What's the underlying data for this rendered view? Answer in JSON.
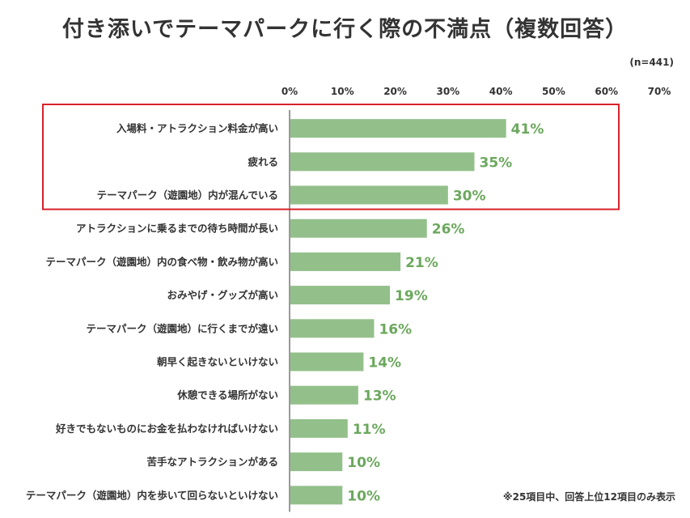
{
  "page": {
    "title": "付き添いでテーマパークに行く際の不満点（複数回答）",
    "sample_size": "(n=441)",
    "footnote": "※25項目中、回答上位12項目のみ表示"
  },
  "colors": {
    "bar": "#93c08a",
    "value_label": "#6ba85d",
    "highlight_box": "#d7222b",
    "axis": "#333333"
  },
  "chart_data": {
    "type": "bar",
    "orientation": "horizontal",
    "title": "付き添いでテーマパークに行く際の不満点（複数回答）",
    "xlim": [
      0,
      70
    ],
    "ticks": [
      0,
      10,
      20,
      30,
      40,
      50,
      60,
      70
    ],
    "tick_labels": [
      "0%",
      "10%",
      "20%",
      "30%",
      "40%",
      "50%",
      "60%",
      "70%"
    ],
    "tick_position": "top",
    "grid": false,
    "categories": [
      "入場料・アトラクション料金が高い",
      "疲れる",
      "テーマパーク（遊園地）内が混んでいる",
      "アトラクションに乗るまでの待ち時間が長い",
      "テーマパーク（遊園地）内の食べ物・飲み物が高い",
      "おみやげ・グッズが高い",
      "テーマパーク（遊園地）に行くまでが遠い",
      "朝早く起きないといけない",
      "休憩できる場所がない",
      "好きでもないものにお金を払わなければいけない",
      "苦手なアトラクションがある",
      "テーマパーク（遊園地）内を歩いて回らないといけない"
    ],
    "values": [
      41,
      35,
      30,
      26,
      21,
      19,
      16,
      14,
      13,
      11,
      10,
      10
    ],
    "value_labels": [
      "41%",
      "35%",
      "30%",
      "26%",
      "21%",
      "19%",
      "16%",
      "14%",
      "13%",
      "11%",
      "10%",
      "10%"
    ],
    "highlighted_categories": 3
  }
}
